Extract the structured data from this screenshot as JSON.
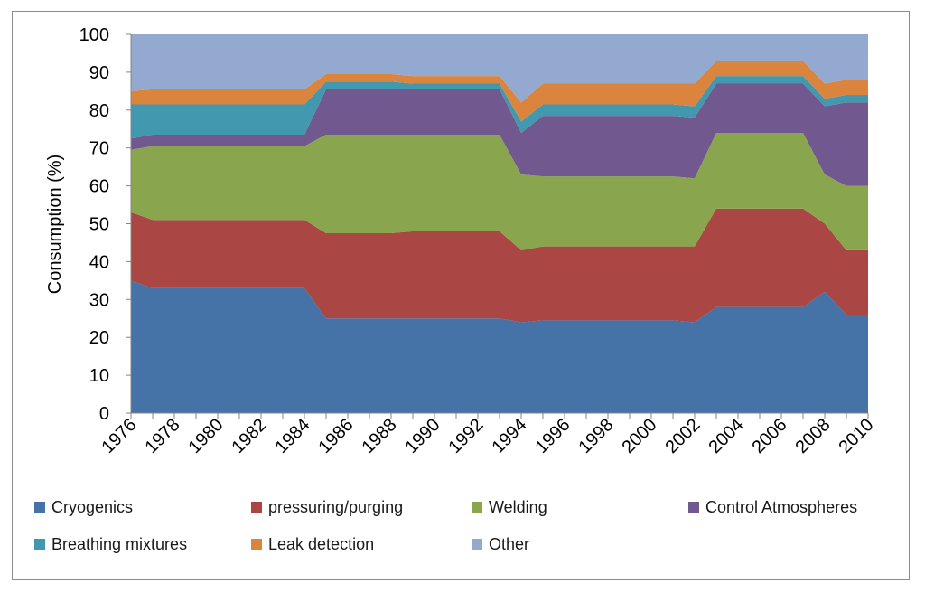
{
  "chart_data": {
    "type": "area",
    "stacked": true,
    "title": "",
    "xlabel": "",
    "ylabel": "Consumption (%)",
    "ylim": [
      0,
      100
    ],
    "yticks": [
      0,
      10,
      20,
      30,
      40,
      50,
      60,
      70,
      80,
      90,
      100
    ],
    "grid": false,
    "legend_position": "bottom",
    "x": [
      1976,
      1977,
      1978,
      1979,
      1980,
      1981,
      1982,
      1983,
      1984,
      1985,
      1986,
      1987,
      1988,
      1989,
      1990,
      1991,
      1992,
      1993,
      1994,
      1995,
      1996,
      1997,
      1998,
      1999,
      2000,
      2001,
      2002,
      2003,
      2004,
      2005,
      2006,
      2007,
      2008,
      2009,
      2010
    ],
    "x_tick_labels": [
      "1976",
      "1978",
      "1980",
      "1982",
      "1984",
      "1986",
      "1988",
      "1990",
      "1992",
      "1994",
      "1996",
      "1998",
      "2000",
      "2002",
      "2004",
      "2006",
      "2008",
      "2010"
    ],
    "series": [
      {
        "name": "Cryogenics",
        "color": "#4572A7",
        "values": [
          35,
          33,
          33,
          33,
          33,
          33,
          33,
          33,
          33,
          25,
          25,
          25,
          25,
          25,
          25,
          25,
          25,
          25,
          24,
          24.5,
          24.5,
          24.5,
          24.5,
          24.5,
          24.5,
          24.5,
          24,
          28,
          28,
          28,
          28,
          28,
          32,
          26,
          26
        ]
      },
      {
        "name": "pressuring/purging",
        "color": "#AA4643",
        "values": [
          18,
          18,
          18,
          18,
          18,
          18,
          18,
          18,
          18,
          22.5,
          22.5,
          22.5,
          22.5,
          23,
          23,
          23,
          23,
          23,
          19,
          19.5,
          19.5,
          19.5,
          19.5,
          19.5,
          19.5,
          19.5,
          20,
          26,
          26,
          26,
          26,
          26,
          18,
          17,
          17
        ]
      },
      {
        "name": "Welding",
        "color": "#89A54E",
        "values": [
          16.5,
          19.5,
          19.5,
          19.5,
          19.5,
          19.5,
          19.5,
          19.5,
          19.5,
          26,
          26,
          26,
          26,
          25.5,
          25.5,
          25.5,
          25.5,
          25.5,
          20,
          18.5,
          18.5,
          18.5,
          18.5,
          18.5,
          18.5,
          18.5,
          18,
          20,
          20,
          20,
          20,
          20,
          13,
          17,
          17
        ]
      },
      {
        "name": "Control Atmospheres",
        "color": "#71588F",
        "values": [
          3,
          3,
          3,
          3,
          3,
          3,
          3,
          3,
          3,
          12,
          12,
          12,
          12,
          12,
          12,
          12,
          12,
          12,
          11,
          16,
          16,
          16,
          16,
          16,
          16,
          16,
          16,
          13,
          13,
          13,
          13,
          13,
          18,
          22,
          22
        ]
      },
      {
        "name": "Breathing mixtures",
        "color": "#4198AF",
        "values": [
          9,
          8,
          8,
          8,
          8,
          8,
          8,
          8,
          8,
          2,
          2,
          2,
          2,
          1.5,
          1.5,
          1.5,
          1.5,
          1.5,
          3,
          3,
          3,
          3,
          3,
          3,
          3,
          3,
          3,
          2,
          2,
          2,
          2,
          2,
          2,
          2,
          2
        ]
      },
      {
        "name": "Leak detection",
        "color": "#DB843D",
        "values": [
          3.5,
          4,
          4,
          4,
          4,
          4,
          4,
          4,
          4,
          2,
          2,
          2,
          2,
          2,
          2,
          2,
          2,
          2,
          5,
          5.5,
          5.5,
          5.5,
          5.5,
          5.5,
          5.5,
          5.5,
          6,
          4,
          4,
          4,
          4,
          4,
          4,
          4,
          4
        ]
      },
      {
        "name": "Other",
        "color": "#93A9CF",
        "values": [
          15,
          14.5,
          14.5,
          14.5,
          14.5,
          14.5,
          14.5,
          14.5,
          14.5,
          10.5,
          10.5,
          10.5,
          10.5,
          11,
          11,
          11,
          11,
          11,
          18,
          13,
          13,
          13,
          13,
          13,
          13,
          13,
          13,
          7,
          7,
          7,
          7,
          7,
          13,
          12,
          12
        ]
      }
    ]
  }
}
